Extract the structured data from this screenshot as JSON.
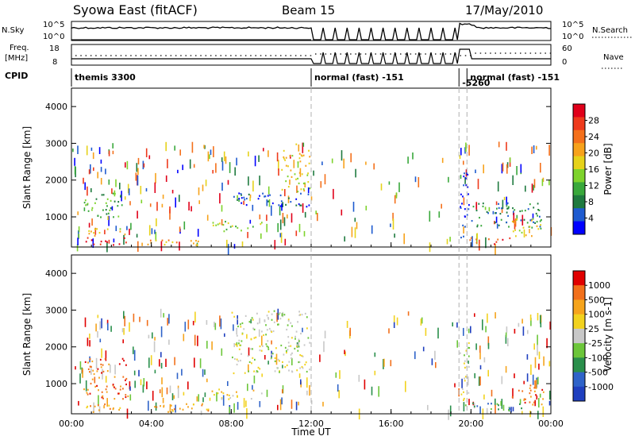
{
  "header": {
    "title": "Syowa East (fitACF)",
    "beam": "Beam 15",
    "date": "17/May/2010"
  },
  "top_panels": {
    "nsky_label": "N.Sky",
    "nsky_ticks": [
      "10^5",
      "10^0"
    ],
    "nsearch_label": "N.Search",
    "nsearch_ticks": [
      "10^5",
      "10^0"
    ],
    "freq_label": "Freq.",
    "freq_unit": "[MHz]",
    "freq_ticks": [
      "18",
      "8"
    ],
    "nave_label": "Nave",
    "nave_ticks": [
      "60",
      "0"
    ],
    "cpid_label": "CPID",
    "cpid_segments": [
      {
        "label": "themis 3300",
        "start_h": 0.0,
        "end_h": 12.0
      },
      {
        "label": "normal (fast) -151",
        "start_h": 12.0,
        "end_h": 19.4
      },
      {
        "label": "-5260",
        "start_h": 19.4,
        "end_h": 19.8
      },
      {
        "label": "normal (fast) -151",
        "start_h": 19.8,
        "end_h": 24.0
      }
    ],
    "markers_h": [
      12.0,
      19.4,
      19.8
    ]
  },
  "chart_data": [
    {
      "type": "heatmap",
      "name": "power",
      "xlabel": "",
      "ylabel": "Slant Range [km]",
      "xlim": [
        0,
        24
      ],
      "ylim": [
        180,
        4500
      ],
      "yticks": [
        "1000",
        "2000",
        "3000",
        "4000"
      ],
      "colorbar": {
        "label": "Power [dB]",
        "ticks": [
          "4",
          "8",
          "12",
          "16",
          "20",
          "24",
          "28"
        ],
        "colors": [
          "#0000ff",
          "#1e5bd0",
          "#1f7a3f",
          "#39a83b",
          "#7ed32c",
          "#e6d21a",
          "#f7a21b",
          "#f4701b",
          "#ee3a1c",
          "#e0001a"
        ]
      },
      "features": [
        {
          "t0": 0.7,
          "t1": 2.8,
          "r0": 250,
          "r1": 480,
          "value_class": 9
        },
        {
          "t0": 0.5,
          "t1": 2.8,
          "r0": 480,
          "r1": 700,
          "value_class": 5
        },
        {
          "t0": 0.6,
          "t1": 2.6,
          "r0": 1000,
          "r1": 1700,
          "value_class": 3
        },
        {
          "t0": 2.8,
          "t1": 7.0,
          "r0": 250,
          "r1": 400,
          "value_class": 6
        },
        {
          "t0": 7.0,
          "t1": 9.5,
          "r0": 600,
          "r1": 900,
          "value_class": 4
        },
        {
          "t0": 8.0,
          "t1": 11.9,
          "r0": 1300,
          "r1": 1700,
          "value_class": 1
        },
        {
          "t0": 10.5,
          "t1": 11.9,
          "r0": 1700,
          "r1": 3000,
          "value_class": 5
        },
        {
          "t0": 19.4,
          "t1": 19.9,
          "r0": 400,
          "r1": 2300,
          "value_class": 0
        },
        {
          "t0": 19.9,
          "t1": 22.0,
          "r0": 250,
          "r1": 450,
          "value_class": 8
        },
        {
          "t0": 20.0,
          "t1": 23.5,
          "r0": 700,
          "r1": 1400,
          "value_class": 2
        },
        {
          "t0": 22.0,
          "t1": 23.6,
          "r0": 450,
          "r1": 1000,
          "value_class": 5
        }
      ]
    },
    {
      "type": "heatmap",
      "name": "velocity",
      "xlabel": "Time UT",
      "ylabel": "Slant Range [km]",
      "xlim": [
        0,
        24
      ],
      "ylim": [
        180,
        4500
      ],
      "xticks": [
        "00:00",
        "04:00",
        "08:00",
        "12:00",
        "16:00",
        "20:00",
        "00:00"
      ],
      "yticks": [
        "1000",
        "2000",
        "3000",
        "4000"
      ],
      "colorbar": {
        "label": "Velocity [m s-1]",
        "ticks": [
          "1000",
          "500",
          "100",
          "25",
          "-25",
          "-100",
          "-500",
          "-1000"
        ],
        "colors": [
          "#1f3fbf",
          "#2f63c9",
          "#2a8f4b",
          "#6cc63a",
          "#c8c8c8",
          "#f2d21e",
          "#f6a41c",
          "#f2701b",
          "#e00000"
        ]
      },
      "features": [
        {
          "t0": 0.7,
          "t1": 7.0,
          "r0": 250,
          "r1": 480,
          "value_class": 6
        },
        {
          "t0": 0.5,
          "t1": 2.8,
          "r0": 600,
          "r1": 1700,
          "value_class": 7
        },
        {
          "t0": 7.0,
          "t1": 9.5,
          "r0": 600,
          "r1": 900,
          "value_class": 5
        },
        {
          "t0": 8.0,
          "t1": 11.9,
          "r0": 1300,
          "r1": 3000,
          "value_class": 4
        },
        {
          "t0": 19.4,
          "t1": 19.9,
          "r0": 400,
          "r1": 2300,
          "value_class": 4
        },
        {
          "t0": 20.0,
          "t1": 22.5,
          "r0": 300,
          "r1": 500,
          "value_class": 2
        },
        {
          "t0": 22.0,
          "t1": 23.6,
          "r0": 450,
          "r1": 1000,
          "value_class": 7
        }
      ]
    }
  ]
}
